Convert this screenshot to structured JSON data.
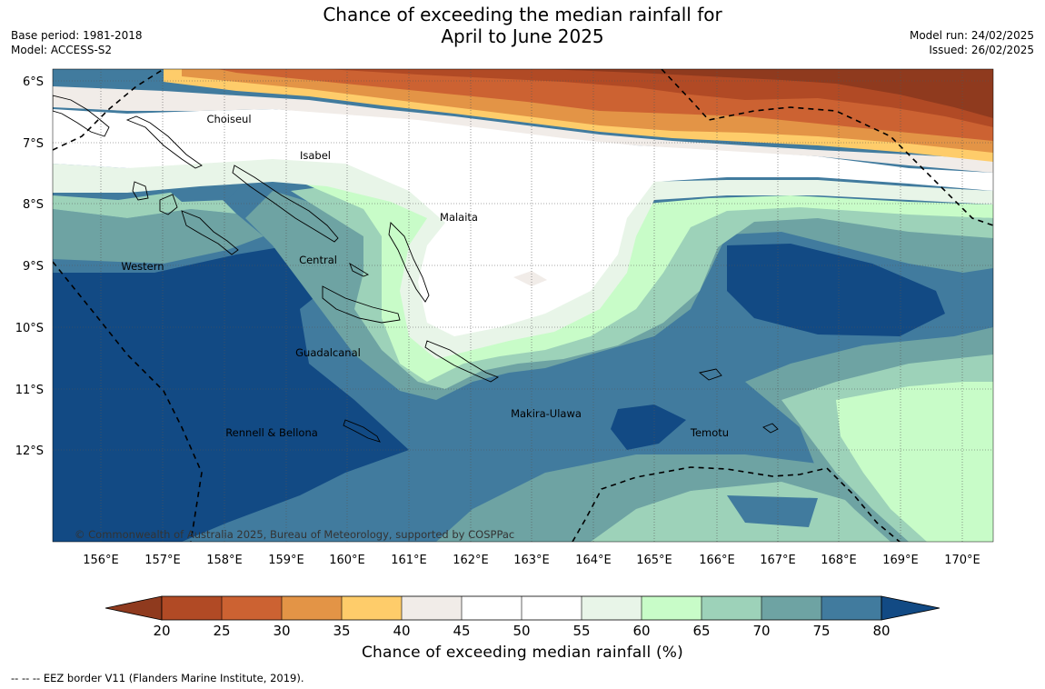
{
  "title": {
    "line1": "Chance of exceeding the median rainfall for",
    "line2": "April to June 2025"
  },
  "meta_left": {
    "base_period": "Base period: 1981-2018",
    "model": "Model: ACCESS-S2"
  },
  "meta_right": {
    "model_run": "Model run: 24/02/2025",
    "issued": "Issued: 26/02/2025"
  },
  "map": {
    "lat_labels": [
      "6°S",
      "7°S",
      "8°S",
      "9°S",
      "10°S",
      "11°S",
      "12°S"
    ],
    "lon_labels": [
      "156°E",
      "157°E",
      "158°E",
      "159°E",
      "160°E",
      "161°E",
      "162°E",
      "163°E",
      "164°E",
      "165°E",
      "166°E",
      "167°E",
      "168°E",
      "169°E",
      "170°E"
    ],
    "places": [
      "Choiseul",
      "Isabel",
      "Malaita",
      "Central",
      "Western",
      "Guadalcanal",
      "Makira-Ulawa",
      "Rennell & Bellona",
      "Temotu"
    ],
    "copyright": "© Commonwealth of Australia 2025, Bureau of Meteorology, supported by COSPPac"
  },
  "colorbar": {
    "ticks": [
      "20",
      "25",
      "30",
      "35",
      "40",
      "45",
      "50",
      "55",
      "60",
      "65",
      "70",
      "75",
      "80"
    ],
    "colors": {
      "below20": "#8f3a1e",
      "20_25": "#b14a25",
      "25_30": "#cc6232",
      "30_35": "#e39446",
      "35_40": "#fecc6a",
      "40_45": "#f1ece8",
      "45_50": "#ffffff",
      "50_55": "#ffffff",
      "55_60": "#e8f5e8",
      "60_65": "#c8fcc8",
      "65_70": "#9dd2b9",
      "70_75": "#6ea3a3",
      "75_80": "#417b9e",
      "above80": "#124a84"
    },
    "title": "Chance of exceeding median rainfall (%)"
  },
  "footer": "--  --  -- EEZ border V11 (Flanders Marine Institute, 2019)."
}
